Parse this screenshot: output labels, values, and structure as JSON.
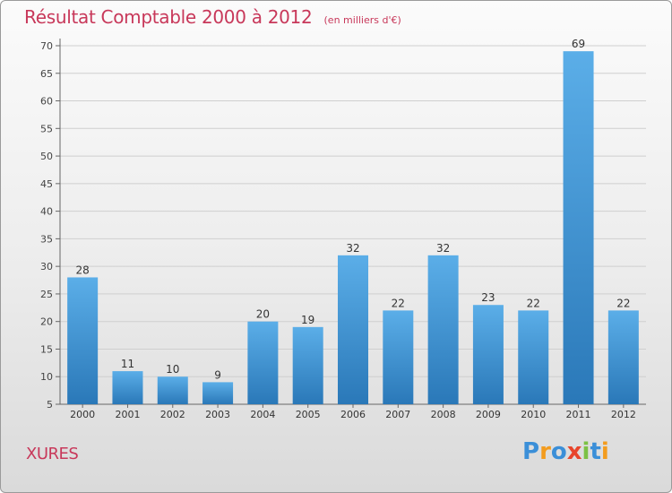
{
  "title": "Résultat Comptable 2000 à 2012",
  "subtitle": "(en milliers d'€)",
  "commune": "XURES",
  "logo": {
    "text": "Proxiti",
    "letters": [
      {
        "char": "P",
        "color": "#3b8fd8"
      },
      {
        "char": "r",
        "color": "#f39c1e"
      },
      {
        "char": "o",
        "color": "#3b8fd8"
      },
      {
        "char": "x",
        "color": "#e8452c"
      },
      {
        "char": "i",
        "color": "#7cc144"
      },
      {
        "char": "t",
        "color": "#3b8fd8"
      },
      {
        "char": "i",
        "color": "#f39c1e"
      }
    ]
  },
  "colors": {
    "bar_top": "#5baee8",
    "bar_bottom": "#2a78b8",
    "title": "#c8385a",
    "axis": "#666666",
    "grid": "#cfcfcf"
  },
  "chart_data": {
    "type": "bar",
    "title": "Résultat Comptable 2000 à 2012",
    "subtitle": "(en milliers d'€)",
    "xlabel": "",
    "ylabel": "",
    "categories": [
      "2000",
      "2001",
      "2002",
      "2003",
      "2004",
      "2005",
      "2006",
      "2007",
      "2008",
      "2009",
      "2010",
      "2011",
      "2012"
    ],
    "values": [
      28,
      11,
      10,
      9,
      20,
      19,
      32,
      22,
      32,
      23,
      22,
      69,
      22
    ],
    "ylim": [
      5,
      70
    ],
    "yticks": [
      5,
      10,
      15,
      20,
      25,
      30,
      35,
      40,
      45,
      50,
      55,
      60,
      65,
      70
    ],
    "grid": true
  }
}
